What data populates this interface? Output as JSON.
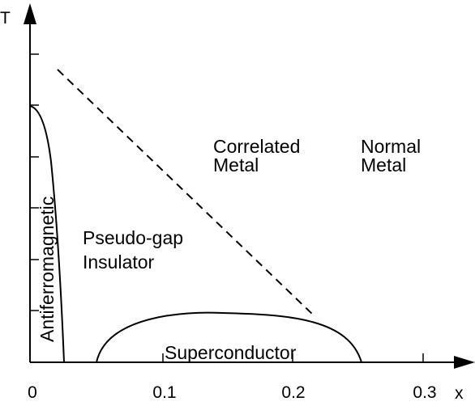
{
  "axes": {
    "y_label": "T",
    "x_label": "x",
    "x_ticks": [
      "0",
      "0.1",
      "0.2",
      "0.3"
    ]
  },
  "regions": {
    "antiferromagnetic": "Antiferromagnetic",
    "pseudogap_line1": "Pseudo-gap",
    "pseudogap_line2": "Insulator",
    "correlated_line1": "Correlated",
    "correlated_line2": "Metal",
    "normal_line1": "Normal",
    "normal_line2": "Metal",
    "superconductor": "Superconductor"
  },
  "colors": {
    "ink": "#000000",
    "background": "#ffffff"
  }
}
